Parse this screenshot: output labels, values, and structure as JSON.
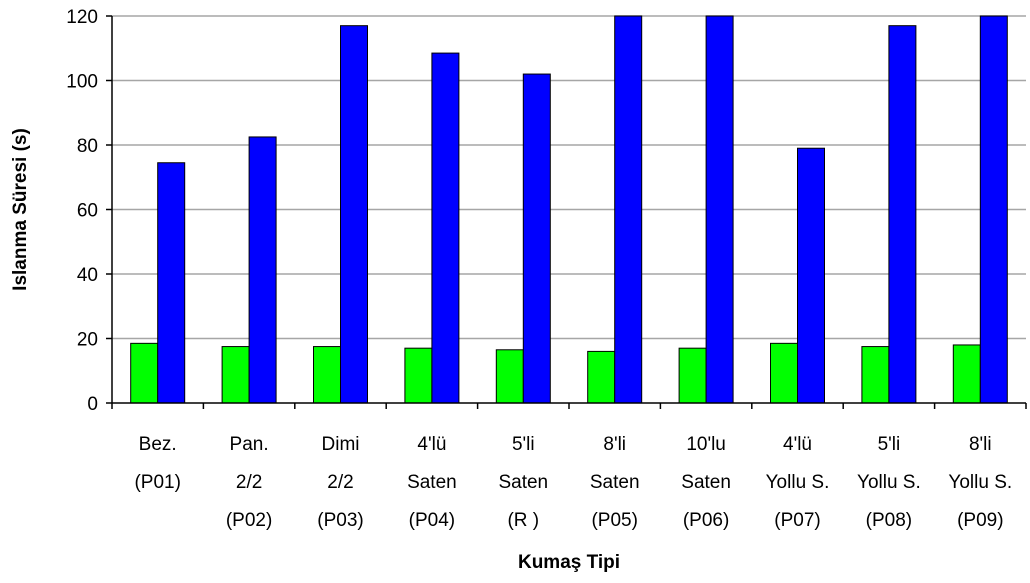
{
  "chart_data": {
    "type": "bar",
    "title": "",
    "xlabel": "Kumaş Tipi",
    "ylabel": "Islanma Süresi (s)",
    "ylim": [
      0,
      120
    ],
    "yticks": [
      0,
      20,
      40,
      60,
      80,
      100,
      120
    ],
    "grid": "horizontal",
    "categories": [
      [
        "Bez.",
        "(P01)"
      ],
      [
        "Pan.",
        "2/2",
        "(P02)"
      ],
      [
        "Dimi",
        "2/2",
        "(P03)"
      ],
      [
        "4'lü",
        "Saten",
        "(P04)"
      ],
      [
        "5'li",
        "Saten",
        "(R )"
      ],
      [
        "8'li",
        "Saten",
        "(P05)"
      ],
      [
        "10'lu",
        "Saten",
        "(P06)"
      ],
      [
        "4'lü",
        "Yollu S.",
        "(P07)"
      ],
      [
        "5'li",
        "Yollu S.",
        "(P08)"
      ],
      [
        "8'li",
        "Yollu S.",
        "(P09)"
      ]
    ],
    "series": [
      {
        "color": "#00ff00",
        "values": [
          18.5,
          17.5,
          17.5,
          17,
          16.5,
          16,
          17,
          18.5,
          17.5,
          18
        ]
      },
      {
        "color": "#0000ff",
        "values": [
          74.5,
          82.5,
          117,
          108.5,
          102,
          120,
          120,
          79,
          117,
          120
        ]
      }
    ]
  }
}
